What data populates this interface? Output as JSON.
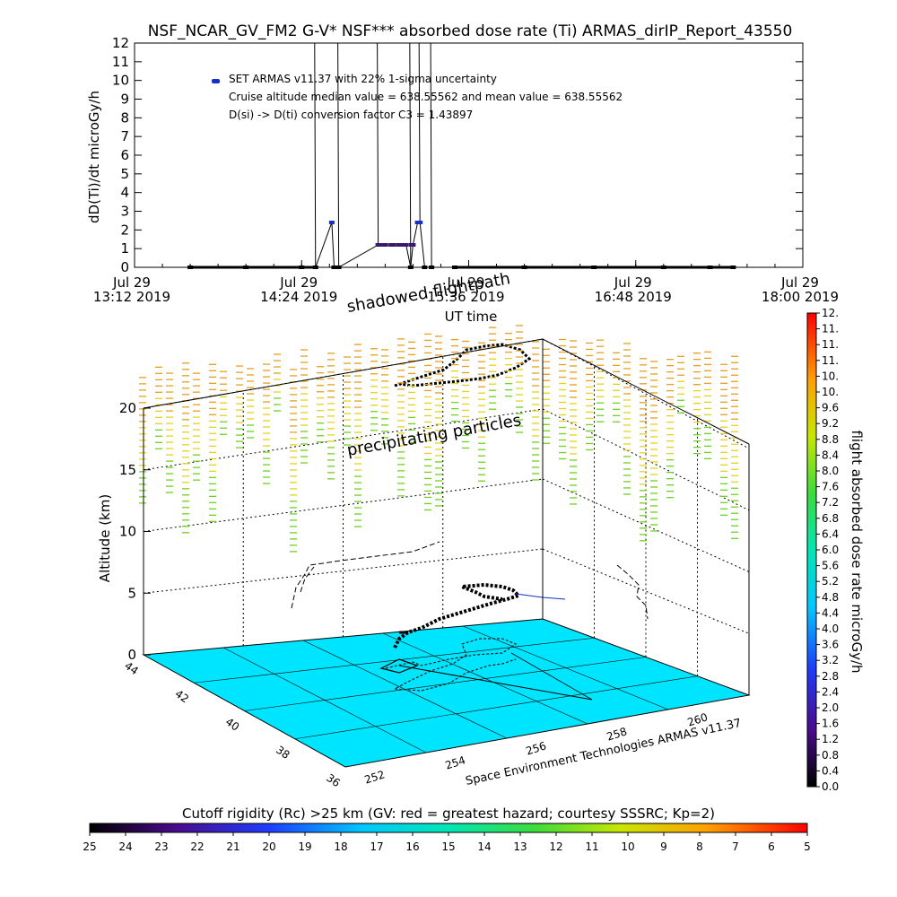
{
  "title": "NSF_NCAR_GV_FM2 G-V* NSF*** absorbed dose rate (Ti) ARMAS_dirIP_Report_43550",
  "colors": {
    "dose_points": "#1430c8",
    "ground": "#00e5ff",
    "precip_yellow": "#e6d21e",
    "precip_green": "#6ed21e",
    "precip_orange": "#e6a01e"
  },
  "top_chart": {
    "ylabel": "dD(Ti)/dt microGy/h",
    "xlabel": "UT time",
    "legend": {
      "series_name": "SET ARMAS v11.37 with 22% 1-sigma uncertainty",
      "line2": "Cruise altitude median value = 638.55562 and mean value = 638.55562",
      "line3": "D(si) -> D(ti) conversion factor C3 = 1.43897"
    },
    "yticks": [
      "0",
      "1",
      "2",
      "3",
      "4",
      "5",
      "6",
      "7",
      "8",
      "9",
      "10",
      "11",
      "12"
    ],
    "xticks": [
      {
        "top": "Jul 29",
        "bottom": "13:12 2019"
      },
      {
        "top": "Jul 29",
        "bottom": "14:24 2019"
      },
      {
        "top": "Jul 29",
        "bottom": "15:36 2019"
      },
      {
        "top": "Jul 29",
        "bottom": "16:48 2019"
      },
      {
        "top": "Jul 29",
        "bottom": "18:00 2019"
      }
    ]
  },
  "chart_data": [
    {
      "type": "line",
      "title": "NSF_NCAR_GV_FM2 G-V* NSF*** absorbed dose rate (Ti) ARMAS_dirIP_Report_43550",
      "xlabel": "UT time",
      "ylabel": "dD(Ti)/dt microGy/h",
      "xlim": [
        "13:12",
        "18:00"
      ],
      "ylim": [
        0,
        12
      ],
      "series": [
        {
          "name": "SET ARMAS v11.37 with 22% 1-sigma uncertainty",
          "x": [
            "13:36",
            "14:00",
            "14:24",
            "14:30",
            "14:37",
            "14:38",
            "14:40",
            "14:57",
            "15:00",
            "15:03",
            "15:06",
            "15:09",
            "15:11",
            "15:12",
            "15:14",
            "15:15",
            "15:17",
            "15:20",
            "15:30",
            "16:00",
            "16:30",
            "17:00",
            "17:20",
            "17:30"
          ],
          "y": [
            0,
            0,
            0,
            0,
            2.4,
            0,
            0,
            1.2,
            1.2,
            1.2,
            1.2,
            1.2,
            0,
            1.2,
            2.4,
            2.4,
            0,
            0,
            0,
            0,
            0,
            0,
            0,
            0
          ]
        }
      ],
      "grid": false
    },
    {
      "type": "scatter",
      "title": "",
      "xlabel": "",
      "ylabel": "Altitude (km)",
      "zlim": [
        0,
        20
      ],
      "annotations": [
        "shadowed flightpath",
        "precipitating particles"
      ],
      "x_ticks": [
        "252",
        "254",
        "256",
        "258",
        "260"
      ],
      "y_ticks": [
        "36",
        "38",
        "40",
        "42",
        "44"
      ],
      "z_ticks": [
        "0",
        "5",
        "10",
        "15",
        "20"
      ]
    }
  ],
  "three_d": {
    "zlabel": "Altitude (km)",
    "annotation_shadow": "shadowed flightpath",
    "annotation_precip": "precipitating particles",
    "credit": "Space Environment Technologies ARMAS v11.37",
    "z_ticks": [
      "0",
      "5",
      "10",
      "15",
      "20"
    ],
    "lat_ticks": [
      "36",
      "38",
      "40",
      "42",
      "44"
    ],
    "lon_ticks": [
      "252",
      "254",
      "256",
      "258",
      "260"
    ]
  },
  "colorbar_right": {
    "label": "flight absorbed dose rate microGy/h",
    "ticks": [
      "0.0",
      "0.4",
      "0.8",
      "1.2",
      "1.6",
      "2.0",
      "2.4",
      "2.8",
      "3.2",
      "3.6",
      "4.0",
      "4.4",
      "4.8",
      "5.2",
      "5.6",
      "6.0",
      "6.4",
      "6.8",
      "7.2",
      "7.6",
      "8.0",
      "8.4",
      "8.8",
      "9.2",
      "9.6",
      "10.",
      "10.",
      "11.",
      "11.",
      "11.",
      "12."
    ]
  },
  "colorbar_bottom": {
    "label": "Cutoff rigidity (Rc) >25 km (GV: red = greatest hazard; courtesy SSSRC; Kp=2)",
    "ticks": [
      "25",
      "24",
      "23",
      "22",
      "21",
      "20",
      "19",
      "18",
      "17",
      "16",
      "15",
      "14",
      "13",
      "12",
      "11",
      "10",
      "9",
      "8",
      "7",
      "6",
      "5"
    ]
  }
}
